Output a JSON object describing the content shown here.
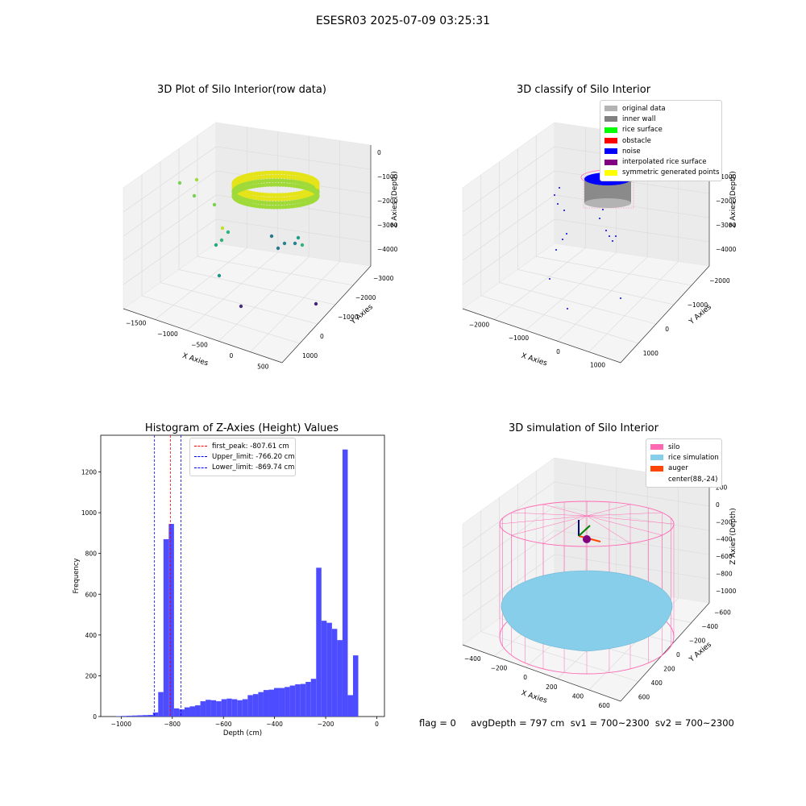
{
  "figure": {
    "suptitle": "ESESR03 2025-07-09 03:25:31",
    "footer": "flag = 0     avgDepth = 797 cm  sv1 = 700~2300  sv2 = 700~2300"
  },
  "chart_data": [
    {
      "type": "scatter",
      "projection": "3d",
      "title": "3D Plot of Silo Interior(row data)",
      "xlabel": "X Axies",
      "ylabel": "Y Axies",
      "zlabel": "Z Axies (Depth)",
      "x_ticks": [
        "−1500",
        "−1000",
        "−500",
        "0",
        "500"
      ],
      "y_ticks": [
        "1000",
        "0",
        "−1000",
        "−2000",
        "−3000"
      ],
      "z_ticks": [
        "0",
        "−1000",
        "−2000",
        "−3000",
        "−4000"
      ],
      "colormap": "viridis",
      "grid": true,
      "description_points": "dense ring of points near Z ≈ −700 to −900 (yellow-green), sparse outliers down to Z ≈ −4000"
    },
    {
      "type": "scatter",
      "projection": "3d",
      "title": "3D classify of Silo Interior",
      "xlabel": "X Axies",
      "ylabel": "Y Axies",
      "zlabel": "Z Axies (Depth)",
      "x_ticks": [
        "−2000",
        "−1000",
        "0",
        "1000"
      ],
      "y_ticks": [
        "1000",
        "0",
        "−1000",
        "−2000"
      ],
      "z_ticks": [
        "0",
        "−1000",
        "−2000",
        "−3000",
        "−4000"
      ],
      "grid": true,
      "legend_position": "top-right",
      "legend": [
        {
          "label": "original data",
          "color": "#b3b3b3"
        },
        {
          "label": "inner wall",
          "color": "#808080"
        },
        {
          "label": "rice surface",
          "color": "#00ff00"
        },
        {
          "label": "obstacle",
          "color": "#ff0000"
        },
        {
          "label": "noise",
          "color": "#0000ff"
        },
        {
          "label": "interpolated rice surface",
          "color": "#800080"
        },
        {
          "label": "symmetric generated points",
          "color": "#ffff00"
        }
      ]
    },
    {
      "type": "bar",
      "title": "Histogram of Z-Axies (Height) Values",
      "xlabel": "Depth (cm)",
      "ylabel": "Frequency",
      "xlim": [
        -1080,
        30
      ],
      "ylim": [
        0,
        1380
      ],
      "x_ticks": [
        {
          "v": -1000,
          "label": "−1000"
        },
        {
          "v": -800,
          "label": "−800"
        },
        {
          "v": -600,
          "label": "−600"
        },
        {
          "v": -400,
          "label": "−400"
        },
        {
          "v": -200,
          "label": "−200"
        },
        {
          "v": 0,
          "label": "0"
        }
      ],
      "y_ticks": [
        0,
        200,
        400,
        600,
        800,
        1000,
        1200
      ],
      "bar_color": "#4d4dff",
      "bin_width": 20.6,
      "bin_start": -1020,
      "values": [
        2,
        3,
        4,
        5,
        6,
        7,
        8,
        20,
        120,
        870,
        945,
        40,
        35,
        45,
        50,
        55,
        75,
        82,
        80,
        75,
        85,
        88,
        85,
        80,
        85,
        105,
        110,
        120,
        130,
        132,
        140,
        140,
        145,
        152,
        158,
        160,
        170,
        185,
        730,
        470,
        460,
        430,
        375,
        1310,
        105,
        300
      ],
      "vlines": [
        {
          "value": -807.61,
          "color": "#ff0000",
          "label": "first_peak: -807.61 cm"
        },
        {
          "value": -766.2,
          "color": "#0000ff",
          "label": "Upper_limit: -766.20 cm"
        },
        {
          "value": -869.74,
          "color": "#0000ff",
          "label": "Lower_limit: -869.74 cm"
        }
      ],
      "legend_position": "top-center",
      "grid": false
    },
    {
      "type": "scatter",
      "projection": "3d",
      "title": "3D simulation of Silo Interior",
      "xlabel": "X Axies",
      "ylabel": "Y Axies",
      "zlabel": "Z Axies (Depth)",
      "x_ticks": [
        "−400",
        "−200",
        "0",
        "200",
        "400",
        "600"
      ],
      "y_ticks": [
        "600",
        "400",
        "200",
        "0",
        "−200",
        "−400",
        "−600"
      ],
      "z_ticks": [
        "200",
        "0",
        "−200",
        "−400",
        "−600",
        "−800",
        "−1000"
      ],
      "grid": true,
      "legend_position": "top-right",
      "legend": [
        {
          "label": "silo",
          "color": "#ff69b4"
        },
        {
          "label": "rice simulation",
          "color": "#87ceeb"
        },
        {
          "label": "auger",
          "color": "#ff4500"
        },
        {
          "label": "center(88,-24)",
          "color": "#ffffff"
        }
      ]
    }
  ]
}
